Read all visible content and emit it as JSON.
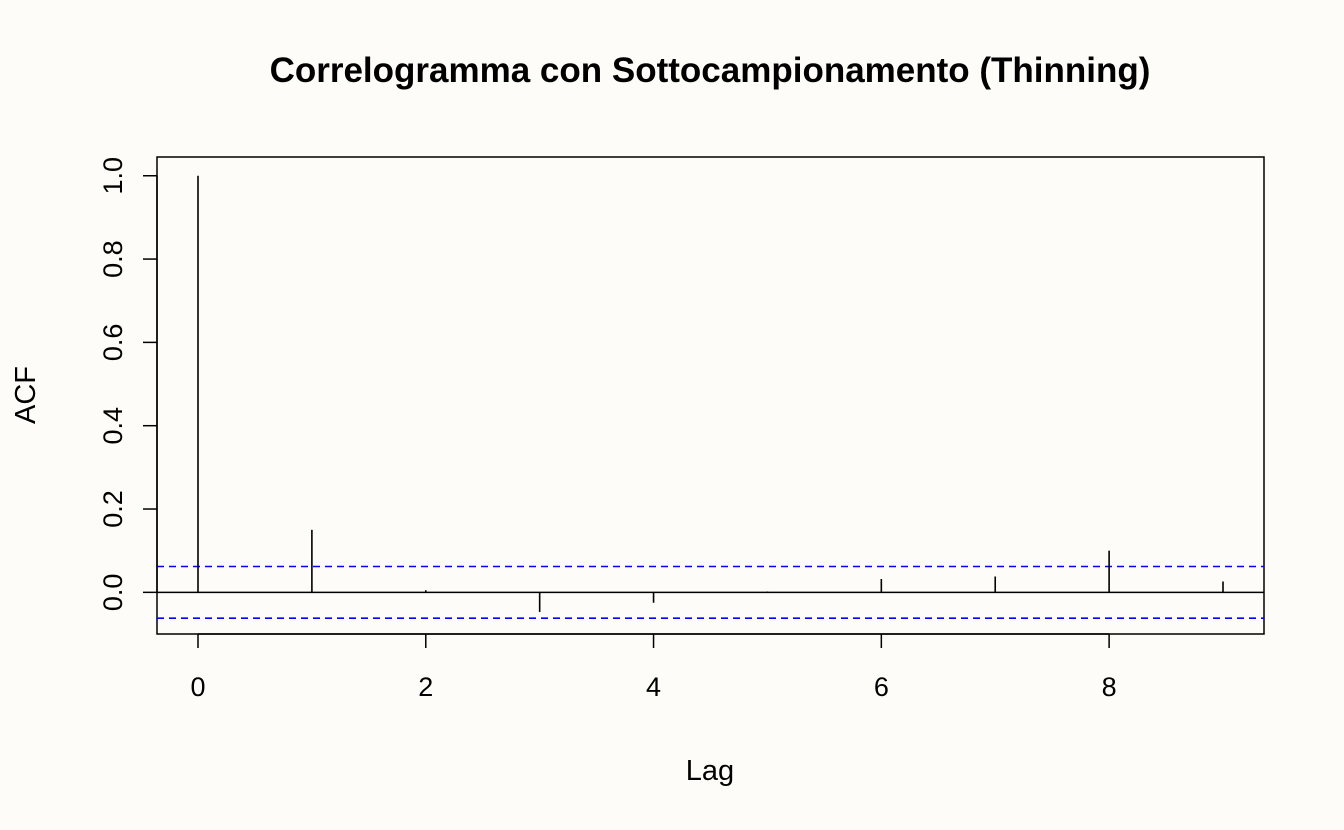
{
  "chart_data": {
    "type": "bar",
    "title": "Correlogramma con Sottocampionamento (Thinning)",
    "xlabel": "Lag",
    "ylabel": "ACF",
    "x": [
      0,
      1,
      2,
      3,
      4,
      5,
      6,
      7,
      8,
      9
    ],
    "values": [
      1.0,
      0.15,
      0.005,
      -0.047,
      -0.025,
      0.002,
      0.032,
      0.038,
      0.1,
      0.026
    ],
    "xlim": [
      -0.36,
      9.36
    ],
    "ylim": [
      -0.1,
      1.045
    ],
    "xticks": [
      0,
      2,
      4,
      6,
      8
    ],
    "yticks": [
      0.0,
      0.2,
      0.4,
      0.6,
      0.8,
      1.0
    ],
    "ytick_labels": [
      "0.0",
      "0.2",
      "0.4",
      "0.6",
      "0.8",
      "1.0"
    ],
    "confidence_bounds": [
      0.062,
      -0.062
    ],
    "confidence_color": "#0000ff",
    "bar_color": "#000000",
    "grid": false
  }
}
